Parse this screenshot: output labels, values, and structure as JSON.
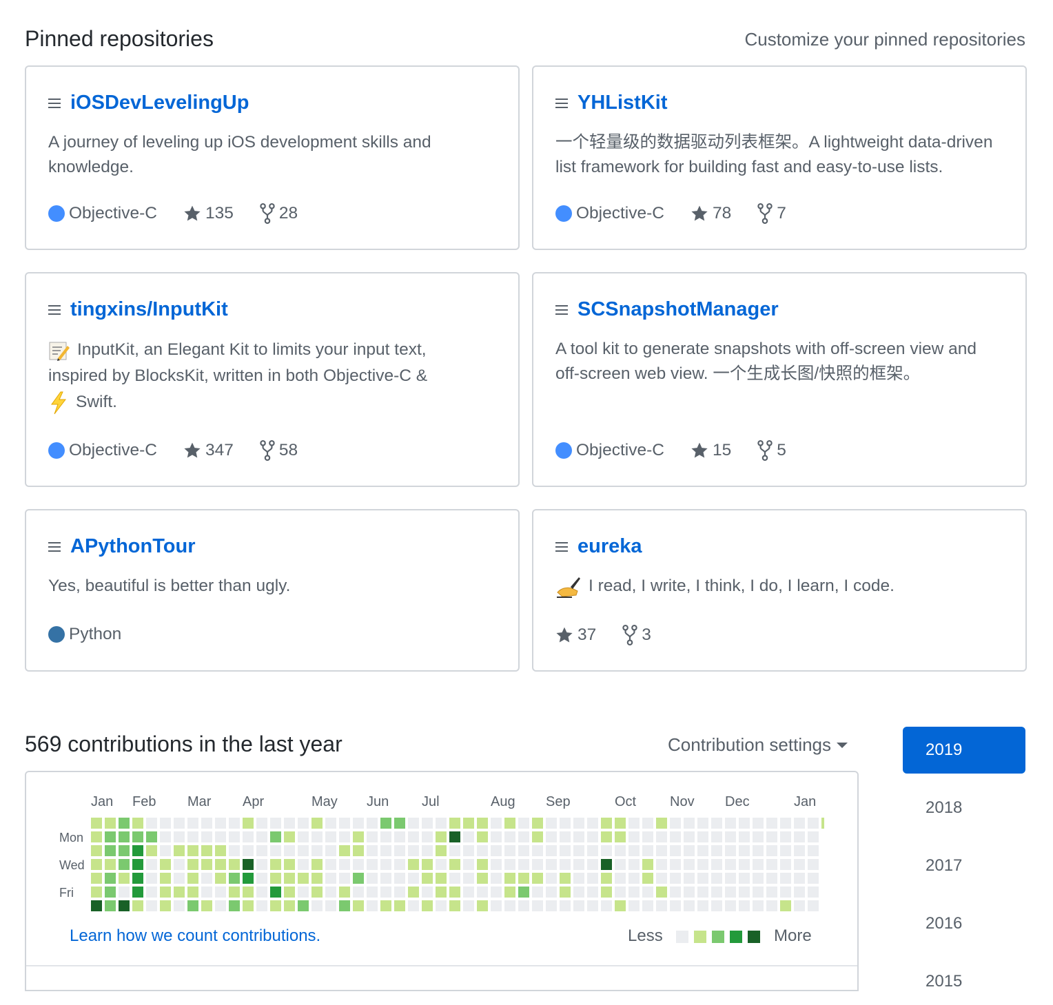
{
  "pinned": {
    "title": "Pinned repositories",
    "customize_label": "Customize your pinned repositories",
    "repos": [
      {
        "name": "iOSDevLevelingUp",
        "desc_lines": [
          "A journey of leveling up iOS development skills and",
          "knowledge."
        ],
        "language": "Objective-C",
        "lang_color": "#438eff",
        "stars": "135",
        "forks": "28"
      },
      {
        "name": "YHListKit",
        "desc_lines": [
          "一个轻量级的数据驱动列表框架。A lightweight data-driven",
          "list framework for building fast and easy-to-use lists."
        ],
        "language": "Objective-C",
        "lang_color": "#438eff",
        "stars": "78",
        "forks": "7"
      },
      {
        "name": "tingxins/InputKit",
        "desc_lines": [
          "InputKit, an Elegant Kit to limits your input text,",
          "inspired by BlocksKit, written in both Objective-C &",
          "Swift."
        ],
        "language": "Objective-C",
        "lang_color": "#438eff",
        "stars": "347",
        "forks": "58"
      },
      {
        "name": "SCSnapshotManager",
        "desc_lines": [
          "A tool kit to generate snapshots with off-screen view and",
          "off-screen web view. 一个生成长图/快照的框架。"
        ],
        "language": "Objective-C",
        "lang_color": "#438eff",
        "stars": "15",
        "forks": "5"
      },
      {
        "name": "APythonTour",
        "desc_lines": [
          "Yes, beautiful is better than ugly."
        ],
        "language": "Python",
        "lang_color": "#3572a5",
        "stars": "",
        "forks": ""
      },
      {
        "name": "eureka",
        "desc_lines": [
          "I read, I write, I think, I do, I learn, I code."
        ],
        "language": "",
        "lang_color": "",
        "stars": "37",
        "forks": "3"
      }
    ]
  },
  "contributions": {
    "title": "569 contributions in the last year",
    "settings_label": "Contribution settings",
    "months": [
      "Jan",
      "Feb",
      "Mar",
      "Apr",
      "May",
      "Jun",
      "Jul",
      "Aug",
      "Sep",
      "Oct",
      "Nov",
      "Dec",
      "Jan"
    ],
    "day_labels": [
      "Mon",
      "Wed",
      "Fri"
    ],
    "learn_label": "Learn how we count contributions.",
    "less_label": "Less",
    "more_label": "More",
    "colors": [
      "#ebedf0",
      "#c6e48b",
      "#7bc96f",
      "#239a3b",
      "#196127"
    ],
    "weeks": [
      "1111114",
      "1221222",
      "2222104",
      "1233331",
      "0210000",
      "0001111",
      "0010010",
      "0011112",
      "0011001",
      "0011100",
      "0001212",
      "1004311",
      "0000000",
      "0201131",
      "0101111",
      "0000102",
      "1001110",
      "0000000",
      "0010012",
      "0110201",
      "0000000",
      "2000001",
      "2000001",
      "0001010",
      "0001101",
      "0110110",
      "1401011",
      "1000000",
      "1101101",
      "0000000",
      "1000110",
      "0000120",
      "1100100",
      "0000000",
      "0000110",
      "0000000",
      "0000000",
      "1104110",
      "1100001",
      "0000000",
      "0001100",
      "1000010",
      "0000000",
      "0000000",
      "0000000",
      "0000000",
      "0000000",
      "0000000",
      "0000000",
      "0000000",
      "0000001",
      "0000000",
      "0000000",
      "1000000"
    ]
  },
  "years": [
    "2019",
    "2018",
    "2017",
    "2016",
    "2015"
  ]
}
